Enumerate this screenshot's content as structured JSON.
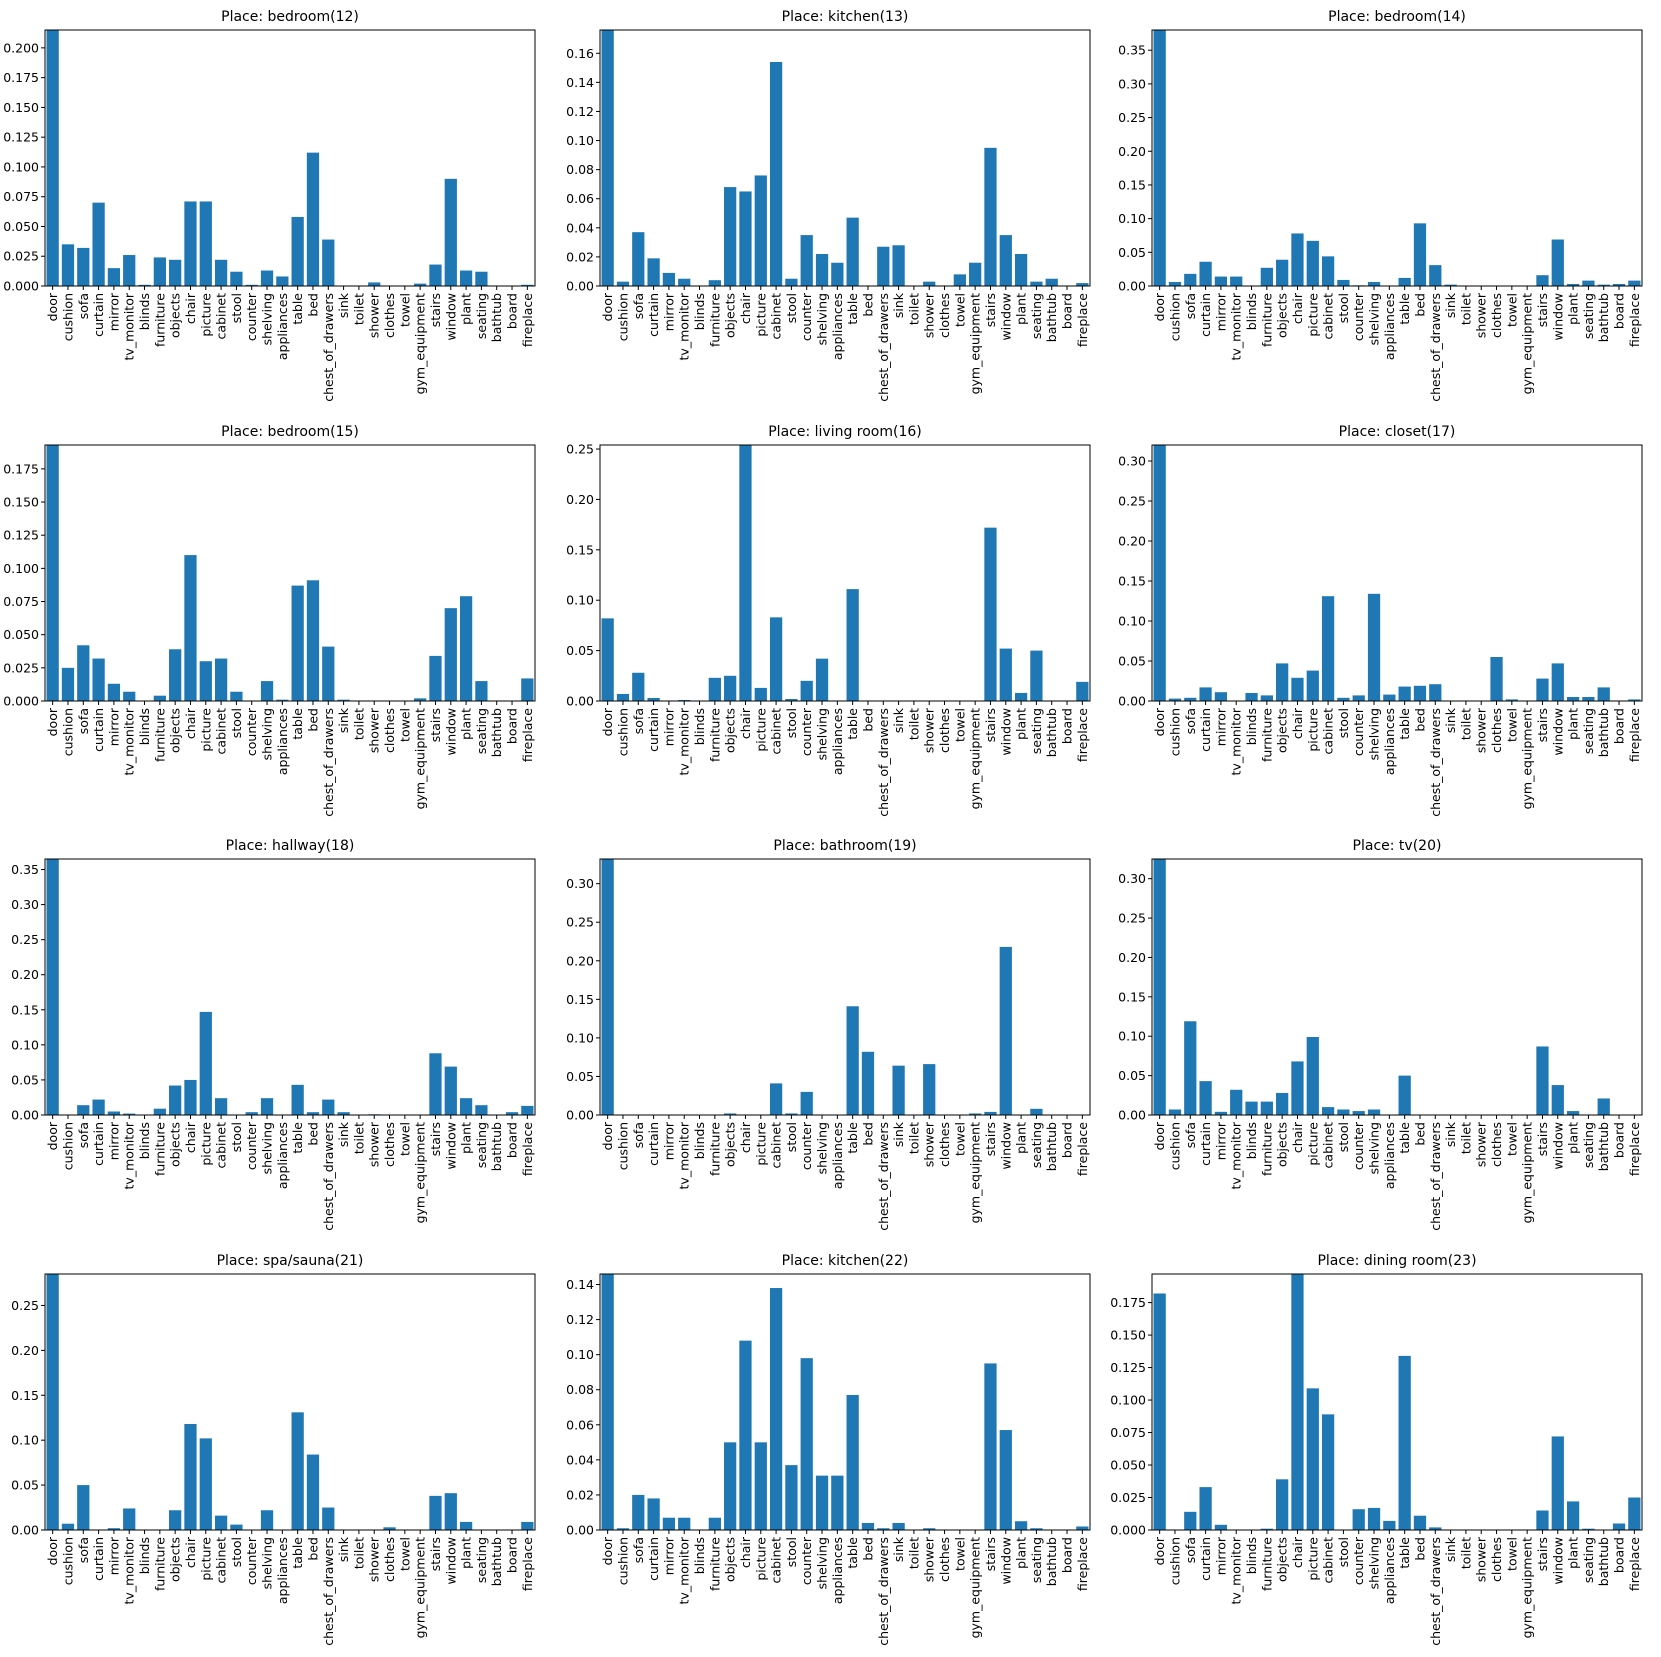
{
  "colors": {
    "bar": "#1f77b4",
    "background": "#ffffff",
    "axis": "#000000"
  },
  "categories": [
    "door",
    "cushion",
    "sofa",
    "curtain",
    "mirror",
    "tv_monitor",
    "blinds",
    "furniture",
    "objects",
    "chair",
    "picture",
    "cabinet",
    "stool",
    "counter",
    "shelving",
    "appliances",
    "table",
    "bed",
    "chest_of_drawers",
    "sink",
    "toilet",
    "shower",
    "clothes",
    "towel",
    "gym_equipment",
    "stairs",
    "window",
    "plant",
    "seating",
    "bathtub",
    "board",
    "fireplace"
  ],
  "chart_data": [
    {
      "type": "bar",
      "title": "Place: bedroom(12)",
      "ylim": [
        0,
        0.215
      ],
      "yticks": [
        "0.000",
        "0.025",
        "0.050",
        "0.075",
        "0.100",
        "0.125",
        "0.150",
        "0.175",
        "0.200"
      ],
      "values": [
        0.215,
        0.035,
        0.032,
        0.07,
        0.015,
        0.026,
        0.001,
        0.024,
        0.022,
        0.071,
        0.071,
        0.022,
        0.012,
        0.001,
        0.013,
        0.008,
        0.058,
        0.112,
        0.039,
        0.0,
        0.0,
        0.003,
        0.0,
        0.0,
        0.002,
        0.018,
        0.09,
        0.013,
        0.012,
        0.0,
        0.0,
        0.001
      ]
    },
    {
      "type": "bar",
      "title": "Place: kitchen(13)",
      "ylim": [
        0,
        0.176
      ],
      "yticks": [
        "0.00",
        "0.02",
        "0.04",
        "0.06",
        "0.08",
        "0.10",
        "0.12",
        "0.14",
        "0.16"
      ],
      "values": [
        0.176,
        0.003,
        0.037,
        0.019,
        0.009,
        0.005,
        0.0,
        0.004,
        0.068,
        0.065,
        0.076,
        0.154,
        0.005,
        0.035,
        0.022,
        0.016,
        0.047,
        0.0,
        0.027,
        0.028,
        0.0,
        0.003,
        0.0,
        0.008,
        0.016,
        0.095,
        0.035,
        0.022,
        0.003,
        0.005,
        0.0,
        0.002
      ]
    },
    {
      "type": "bar",
      "title": "Place: bedroom(14)",
      "ylim": [
        0,
        0.38
      ],
      "yticks": [
        "0.00",
        "0.05",
        "0.10",
        "0.15",
        "0.20",
        "0.25",
        "0.30",
        "0.35"
      ],
      "values": [
        0.38,
        0.006,
        0.018,
        0.036,
        0.014,
        0.014,
        0.0,
        0.027,
        0.039,
        0.078,
        0.067,
        0.044,
        0.009,
        0.001,
        0.006,
        0.0,
        0.012,
        0.093,
        0.031,
        0.002,
        0.0,
        0.0,
        0.0,
        0.0,
        0.0,
        0.016,
        0.069,
        0.003,
        0.008,
        0.002,
        0.003,
        0.008
      ]
    },
    {
      "type": "bar",
      "title": "Place: bedroom(15)",
      "ylim": [
        0,
        0.193
      ],
      "yticks": [
        "0.000",
        "0.025",
        "0.050",
        "0.075",
        "0.100",
        "0.125",
        "0.150",
        "0.175"
      ],
      "values": [
        0.193,
        0.025,
        0.042,
        0.032,
        0.013,
        0.007,
        0.0,
        0.004,
        0.039,
        0.11,
        0.03,
        0.032,
        0.007,
        0.0,
        0.015,
        0.001,
        0.087,
        0.091,
        0.041,
        0.001,
        0.0,
        0.0,
        0.0,
        0.0,
        0.002,
        0.034,
        0.07,
        0.079,
        0.015,
        0.0,
        0.0,
        0.017
      ]
    },
    {
      "type": "bar",
      "title": "Place: living room(16)",
      "ylim": [
        0,
        0.254
      ],
      "yticks": [
        "0.00",
        "0.05",
        "0.10",
        "0.15",
        "0.20",
        "0.25"
      ],
      "values": [
        0.082,
        0.007,
        0.028,
        0.003,
        0.0,
        0.001,
        0.0,
        0.023,
        0.025,
        0.254,
        0.013,
        0.083,
        0.002,
        0.02,
        0.042,
        0.0,
        0.111,
        0.0,
        0.0,
        0.0,
        0.0,
        0.0,
        0.0,
        0.0,
        0.0,
        0.172,
        0.052,
        0.008,
        0.05,
        0.0,
        0.0,
        0.019
      ]
    },
    {
      "type": "bar",
      "title": "Place: closet(17)",
      "ylim": [
        0,
        0.32
      ],
      "yticks": [
        "0.00",
        "0.05",
        "0.10",
        "0.15",
        "0.20",
        "0.25",
        "0.30"
      ],
      "values": [
        0.32,
        0.003,
        0.004,
        0.017,
        0.011,
        0.0,
        0.01,
        0.007,
        0.047,
        0.029,
        0.038,
        0.131,
        0.004,
        0.007,
        0.134,
        0.008,
        0.018,
        0.019,
        0.021,
        0.0,
        0.0,
        0.0,
        0.055,
        0.002,
        0.0,
        0.028,
        0.047,
        0.005,
        0.005,
        0.017,
        0.0,
        0.002
      ]
    },
    {
      "type": "bar",
      "title": "Place: hallway(18)",
      "ylim": [
        0,
        0.365
      ],
      "yticks": [
        "0.00",
        "0.05",
        "0.10",
        "0.15",
        "0.20",
        "0.25",
        "0.30",
        "0.35"
      ],
      "values": [
        0.365,
        0.0,
        0.014,
        0.022,
        0.005,
        0.002,
        0.0,
        0.009,
        0.042,
        0.05,
        0.147,
        0.024,
        0.0,
        0.004,
        0.024,
        0.0,
        0.043,
        0.004,
        0.022,
        0.004,
        0.0,
        0.001,
        0.0,
        0.0,
        0.0,
        0.088,
        0.069,
        0.024,
        0.014,
        0.0,
        0.004,
        0.013
      ]
    },
    {
      "type": "bar",
      "title": "Place: bathroom(19)",
      "ylim": [
        0,
        0.332
      ],
      "yticks": [
        "0.00",
        "0.05",
        "0.10",
        "0.15",
        "0.20",
        "0.25",
        "0.30"
      ],
      "values": [
        0.332,
        0.0,
        0.0,
        0.0,
        0.0,
        0.0,
        0.0,
        0.0,
        0.002,
        0.0,
        0.0,
        0.041,
        0.002,
        0.03,
        0.0,
        0.0,
        0.141,
        0.082,
        0.0,
        0.064,
        0.0,
        0.066,
        0.0,
        0.0,
        0.002,
        0.004,
        0.218,
        0.0,
        0.008,
        0.0,
        0.0,
        0.0
      ]
    },
    {
      "type": "bar",
      "title": "Place: tv(20)",
      "ylim": [
        0,
        0.325
      ],
      "yticks": [
        "0.00",
        "0.05",
        "0.10",
        "0.15",
        "0.20",
        "0.25",
        "0.30"
      ],
      "values": [
        0.325,
        0.007,
        0.119,
        0.043,
        0.004,
        0.032,
        0.017,
        0.017,
        0.028,
        0.068,
        0.099,
        0.01,
        0.007,
        0.005,
        0.007,
        0.0,
        0.05,
        0.0,
        0.0,
        0.0,
        0.0,
        0.0,
        0.0,
        0.0,
        0.0,
        0.087,
        0.038,
        0.005,
        0.0,
        0.021,
        0.0,
        0.0
      ]
    },
    {
      "type": "bar",
      "title": "Place: spa/sauna(21)",
      "ylim": [
        0,
        0.285
      ],
      "yticks": [
        "0.00",
        "0.05",
        "0.10",
        "0.15",
        "0.20",
        "0.25"
      ],
      "values": [
        0.285,
        0.007,
        0.05,
        0.0,
        0.002,
        0.024,
        0.0,
        0.0,
        0.022,
        0.118,
        0.102,
        0.016,
        0.006,
        0.0,
        0.022,
        0.0,
        0.131,
        0.084,
        0.025,
        0.0,
        0.0,
        0.0,
        0.003,
        0.0,
        0.0,
        0.038,
        0.041,
        0.009,
        0.0,
        0.0,
        0.0,
        0.009
      ]
    },
    {
      "type": "bar",
      "title": "Place: kitchen(22)",
      "ylim": [
        0,
        0.146
      ],
      "yticks": [
        "0.00",
        "0.02",
        "0.04",
        "0.06",
        "0.08",
        "0.10",
        "0.12",
        "0.14"
      ],
      "values": [
        0.146,
        0.001,
        0.02,
        0.018,
        0.007,
        0.007,
        0.0,
        0.007,
        0.05,
        0.108,
        0.05,
        0.138,
        0.037,
        0.098,
        0.031,
        0.031,
        0.077,
        0.004,
        0.001,
        0.004,
        0.0,
        0.001,
        0.0,
        0.0,
        0.0,
        0.095,
        0.057,
        0.005,
        0.001,
        0.0,
        0.0,
        0.002
      ]
    },
    {
      "type": "bar",
      "title": "Place: dining room(23)",
      "ylim": [
        0,
        0.197
      ],
      "yticks": [
        "0.000",
        "0.025",
        "0.050",
        "0.075",
        "0.100",
        "0.125",
        "0.150",
        "0.175"
      ],
      "values": [
        0.182,
        0.0,
        0.014,
        0.033,
        0.004,
        0.0,
        0.0,
        0.001,
        0.039,
        0.197,
        0.109,
        0.089,
        0.0,
        0.016,
        0.017,
        0.007,
        0.134,
        0.011,
        0.002,
        0.0,
        0.0,
        0.0,
        0.0,
        0.0,
        0.0,
        0.015,
        0.072,
        0.022,
        0.001,
        0.0,
        0.005,
        0.025
      ]
    }
  ]
}
